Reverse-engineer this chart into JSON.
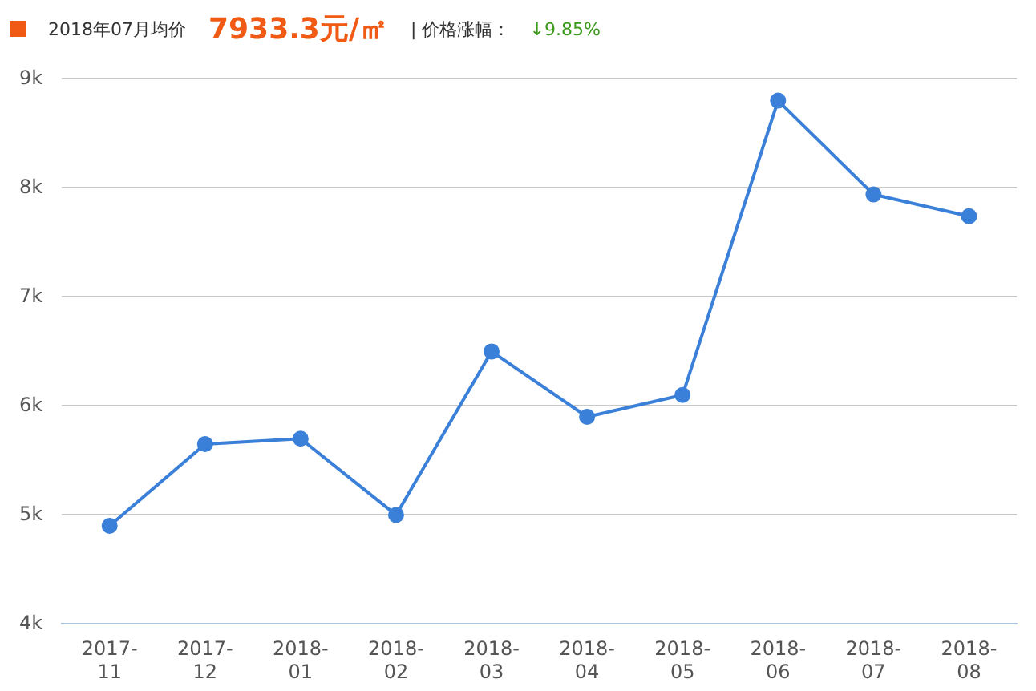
{
  "chart_data": {
    "type": "line",
    "title": "2018年07月均价",
    "annotations": [
      "7933.3元/㎡",
      "| 价格涨幅：",
      "↓9.85%"
    ],
    "categories": [
      "2017-11",
      "2017-12",
      "2018-01",
      "2018-02",
      "2018-03",
      "2018-04",
      "2018-05",
      "2018-06",
      "2018-07",
      "2018-08"
    ],
    "series": [
      {
        "color": "#3a7fd8",
        "values": [
          4900,
          5650,
          5700,
          5000,
          6500,
          5900,
          6100,
          8800,
          7940,
          7740
        ]
      }
    ],
    "ylim": [
      4000,
      9000
    ],
    "yticks": [
      {
        "value": 4000,
        "label": "4k"
      },
      {
        "value": 5000,
        "label": "5k"
      },
      {
        "value": 6000,
        "label": "6k"
      },
      {
        "value": 7000,
        "label": "7k"
      },
      {
        "value": 8000,
        "label": "8k"
      },
      {
        "value": 9000,
        "label": "9k"
      }
    ],
    "grid": "y",
    "marker": "circle",
    "line_style": "solid",
    "legend": false
  }
}
